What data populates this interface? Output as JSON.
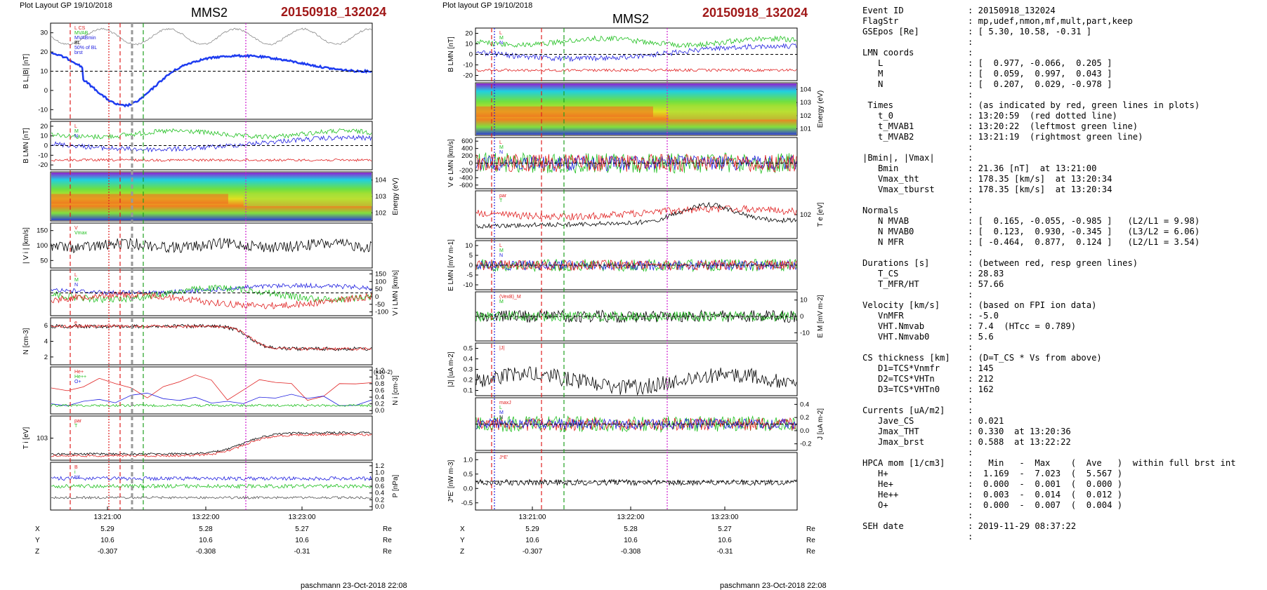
{
  "left_panel": {
    "header": "Plot Layout GP 19/10/2018",
    "title": "MMS2",
    "event": "20150918_132024",
    "footer": "paschmann 23-Oct-2018 22:08",
    "time_ticks": [
      "13:21:00",
      "13:22:00",
      "13:23:00"
    ],
    "ephemeris": [
      {
        "label": "X",
        "values": [
          "5.29",
          "5.28",
          "5.27"
        ],
        "unit": "Re"
      },
      {
        "label": "Y",
        "values": [
          "10.6",
          "10.6",
          "10.6"
        ],
        "unit": "Re"
      },
      {
        "label": "Z",
        "values": [
          "-0.307",
          "-0.308",
          "-0.31"
        ],
        "unit": "Re"
      }
    ],
    "panels": [
      {
        "ylabel": "B_L,|B| [nT]",
        "side": "left",
        "ticks": [
          "30",
          "20",
          "10",
          "0",
          "-10"
        ],
        "legend": [
          "L CS",
          "MVAB",
          "MVABmin",
          "BL",
          "50% of BL",
          "brst"
        ]
      },
      {
        "ylabel": "B_LMN [nT]",
        "side": "left",
        "ticks": [
          "20",
          "10",
          "0",
          "-10",
          "-20"
        ],
        "legend": [
          "L",
          "M",
          "N"
        ]
      },
      {
        "ylabel": "Energy (eV)",
        "side": "right",
        "ticks": [
          "10^4",
          "10^3",
          "10^2"
        ],
        "legend": []
      },
      {
        "ylabel": "| V_i | [km/s]",
        "side": "left",
        "ticks": [
          "150",
          "100",
          "50"
        ],
        "legend": [
          "V",
          "Vmax"
        ]
      },
      {
        "ylabel": "V_i LMN [km/s]",
        "side": "right",
        "ticks": [
          "150",
          "100",
          "50",
          "0",
          "-50",
          "-100"
        ],
        "legend": [
          "L",
          "M",
          "N"
        ]
      },
      {
        "ylabel": "N [cm^-3]",
        "side": "left",
        "ticks": [
          "6",
          "4",
          "2"
        ],
        "legend": [
          "e"
        ]
      },
      {
        "ylabel": "N_i [cm^-3]",
        "side": "right",
        "ticks": [
          "1.2",
          "1.0",
          "0.8",
          "0.6",
          "0.4",
          "0.2",
          "0.0"
        ],
        "legend": [
          "He+",
          "He++",
          "O+"
        ],
        "scale": "(x10^-2)"
      },
      {
        "ylabel": "T_i [eV]",
        "side": "left",
        "ticks": [
          "10^3"
        ],
        "legend": [
          "par",
          "T"
        ]
      },
      {
        "ylabel": "P [nPa]",
        "side": "right",
        "ticks": [
          "1.2",
          "1.0",
          "0.8",
          "0.6",
          "0.4",
          "0.2",
          "0.0"
        ],
        "legend": [
          "B",
          "i",
          "tot"
        ]
      }
    ]
  },
  "right_panel": {
    "header": "Plot layout GP 19/10/2018",
    "title": "MMS2",
    "event": "20150918_132024",
    "footer": "paschmann 23-Oct-2018 22:08",
    "time_ticks": [
      "13:21:00",
      "13:22:00",
      "13:23:00"
    ],
    "ephemeris": [
      {
        "label": "X",
        "values": [
          "5.29",
          "5.28",
          "5.27"
        ],
        "unit": "Re"
      },
      {
        "label": "Y",
        "values": [
          "10.6",
          "10.6",
          "10.6"
        ],
        "unit": "Re"
      },
      {
        "label": "Z",
        "values": [
          "-0.307",
          "-0.308",
          "-0.31"
        ],
        "unit": "Re"
      }
    ],
    "panels": [
      {
        "ylabel": "B_LMN [nT]",
        "side": "left",
        "ticks": [
          "20",
          "10",
          "0",
          "-10",
          "-20"
        ],
        "legend": [
          "L",
          "M",
          "N"
        ]
      },
      {
        "ylabel": "Energy (eV)",
        "side": "right",
        "ticks": [
          "10^4",
          "10^3",
          "10^2",
          "10^1"
        ],
        "legend": []
      },
      {
        "ylabel": "V_e LMN [km/s]",
        "side": "left",
        "ticks": [
          "600",
          "400",
          "200",
          "0",
          "-200",
          "-400",
          "-600"
        ],
        "legend": [
          "L",
          "M",
          "N"
        ]
      },
      {
        "ylabel": "T_e [eV]",
        "side": "right",
        "ticks": [
          "10^2"
        ],
        "legend": [
          "par",
          "T"
        ]
      },
      {
        "ylabel": "E_LMN [mV m^-1]",
        "side": "left",
        "ticks": [
          "10",
          "5",
          "0",
          "-5",
          "-10"
        ],
        "legend": [
          "L",
          "M",
          "N"
        ]
      },
      {
        "ylabel": "E_M [mV m^-2]",
        "side": "right",
        "ticks": [
          "10",
          "0",
          "-10"
        ],
        "legend": [
          "(VexB)_M",
          "M"
        ]
      },
      {
        "ylabel": "|J| [uA m^-2]",
        "side": "left",
        "ticks": [
          "0.5",
          "0.4",
          "0.3",
          "0.2",
          "0.1"
        ],
        "legend": [
          "|J|"
        ]
      },
      {
        "ylabel": "J [uA m^-2]",
        "side": "right",
        "ticks": [
          "0.4",
          "0.2",
          "0.0",
          "-0.2"
        ],
        "legend": [
          "maxJ",
          "L",
          "M",
          "N"
        ]
      },
      {
        "ylabel": "J*E' [nW m^-3]",
        "side": "left",
        "ticks": [
          "1.0",
          "0.5",
          "0.0",
          "-0.5"
        ],
        "legend": [
          "J*E'"
        ]
      }
    ]
  },
  "info": [
    {
      "k": "Event ID",
      "v": ": 20150918_132024"
    },
    {
      "k": "FlagStr",
      "v": ": mp,udef,nmon,mf,mult,part,keep"
    },
    {
      "k": "GSEpos [Re]",
      "v": ": [ 5.30, 10.58, -0.31 ]"
    },
    {
      "k": "",
      "v": ":"
    },
    {
      "k": "LMN coords",
      "v": ":"
    },
    {
      "k": "   L",
      "v": ": [  0.977, -0.066,  0.205 ]"
    },
    {
      "k": "   M",
      "v": ": [  0.059,  0.997,  0.043 ]"
    },
    {
      "k": "   N",
      "v": ": [  0.207,  0.029, -0.978 ]"
    },
    {
      "k": "",
      "v": ":"
    },
    {
      "k": " Times",
      "v": ": (as indicated by red, green lines in plots)"
    },
    {
      "k": "   t_0",
      "v": ": 13:20:59  (red dotted line)"
    },
    {
      "k": "   t_MVAB1",
      "v": ": 13:20:22  (leftmost green line)"
    },
    {
      "k": "   t_MVAB2",
      "v": ": 13:21:19  (rightmost green line)"
    },
    {
      "k": "",
      "v": ":"
    },
    {
      "k": "|Bmin|, |Vmax|",
      "v": ":"
    },
    {
      "k": "   Bmin",
      "v": ": 21.36 [nT]  at 13:21:00"
    },
    {
      "k": "   Vmax_tht",
      "v": ": 178.35 [km/s]  at 13:20:34"
    },
    {
      "k": "   Vmax_tburst",
      "v": ": 178.35 [km/s]  at 13:20:34"
    },
    {
      "k": "",
      "v": ":"
    },
    {
      "k": "Normals",
      "v": ":"
    },
    {
      "k": "   N MVAB",
      "v": ": [  0.165, -0.055, -0.985 ]   (L2/L1 = 9.98)"
    },
    {
      "k": "   N MVAB0",
      "v": ": [  0.123,  0.930, -0.345 ]   (L3/L2 = 6.06)"
    },
    {
      "k": "   N MFR",
      "v": ": [ -0.464,  0.877,  0.124 ]   (L2/L1 = 3.54)"
    },
    {
      "k": "",
      "v": ":"
    },
    {
      "k": "Durations [s]",
      "v": ": (between red, resp green lines)"
    },
    {
      "k": "   T_CS",
      "v": ": 28.83"
    },
    {
      "k": "   T_MFR/HT",
      "v": ": 57.66"
    },
    {
      "k": "",
      "v": ":"
    },
    {
      "k": "Velocity [km/s]",
      "v": ": (based on FPI ion data)"
    },
    {
      "k": "   VnMFR",
      "v": ": -5.0"
    },
    {
      "k": "   VHT.Nmvab",
      "v": ": 7.4  (HTcc = 0.789)"
    },
    {
      "k": "   VHT.Nmvab0",
      "v": ": 5.6"
    },
    {
      "k": "",
      "v": ":"
    },
    {
      "k": "CS thickness [km]",
      "v": ": (D=T_CS * Vs from above)"
    },
    {
      "k": "   D1=TCS*Vnmfr",
      "v": ": 145"
    },
    {
      "k": "   D2=TCS*VHTn",
      "v": ": 212"
    },
    {
      "k": "   D3=TCS*VHTn0",
      "v": ": 162"
    },
    {
      "k": "",
      "v": ":"
    },
    {
      "k": "Currents [uA/m2]",
      "v": ":"
    },
    {
      "k": "   Jave_CS",
      "v": ": 0.021"
    },
    {
      "k": "   Jmax_THT",
      "v": ": 0.330  at 13:20:36"
    },
    {
      "k": "   Jmax_brst",
      "v": ": 0.588  at 13:22:22"
    },
    {
      "k": "",
      "v": ":"
    },
    {
      "k": "HPCA mom [1/cm3]",
      "v": ":   Min   -  Max    (  Ave   )  within full brst int"
    },
    {
      "k": "   H+",
      "v": ":  1.169  -  7.023  (  5.567 )"
    },
    {
      "k": "   He+",
      "v": ":  0.000  -  0.001  (  0.000 )"
    },
    {
      "k": "   He++",
      "v": ":  0.003  -  0.014  (  0.012 )"
    },
    {
      "k": "   O+",
      "v": ":  0.000  -  0.007  (  0.004 )"
    },
    {
      "k": "",
      "v": ":"
    },
    {
      "k": "SEH date",
      "v": ": 2019-11-29 08:37:22"
    },
    {
      "k": "",
      "v": ":"
    }
  ],
  "colors": {
    "L": "#e02020",
    "M": "#20c020",
    "N": "#2020e0",
    "black": "#000000",
    "magenta": "#d020d0",
    "darkred": "#a01818"
  }
}
